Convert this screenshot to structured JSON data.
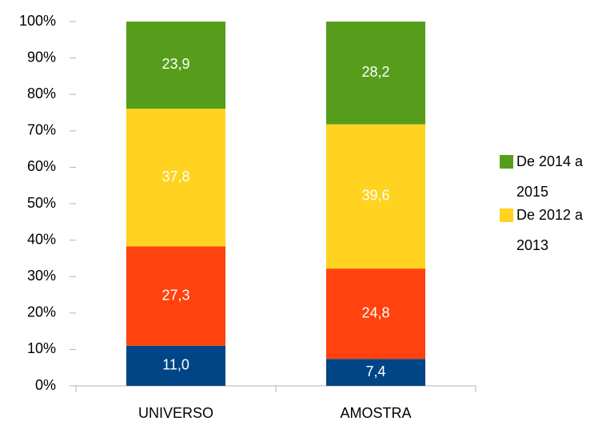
{
  "chart_data": {
    "type": "stacked_bar_percent",
    "categories": [
      "UNIVERSO",
      "AMOSTRA"
    ],
    "series": [
      {
        "color": "#004586",
        "values": [
          11.0,
          7.4
        ],
        "value_labels": [
          "11,0",
          "7,4"
        ]
      },
      {
        "color": "#ff420e",
        "values": [
          27.3,
          24.8
        ],
        "value_labels": [
          "27,3",
          "24,8"
        ]
      },
      {
        "name": "De 2012 a 2013",
        "color": "#ffd320",
        "values": [
          37.8,
          39.6
        ],
        "value_labels": [
          "37,8",
          "39,6"
        ]
      },
      {
        "name": "De 2014 a 2015",
        "color": "#579d1c",
        "values": [
          23.9,
          28.2
        ],
        "value_labels": [
          "23,9",
          "28,2"
        ]
      }
    ],
    "ylim": [
      0,
      100
    ],
    "yticks": [
      {
        "value": 0,
        "label": "0%"
      },
      {
        "value": 10,
        "label": "10%"
      },
      {
        "value": 20,
        "label": "20%"
      },
      {
        "value": 30,
        "label": "30%"
      },
      {
        "value": 40,
        "label": "40%"
      },
      {
        "value": 50,
        "label": "50%"
      },
      {
        "value": 60,
        "label": "60%"
      },
      {
        "value": 70,
        "label": "70%"
      },
      {
        "value": 80,
        "label": "80%"
      },
      {
        "value": 90,
        "label": "90%"
      },
      {
        "value": 100,
        "label": "100%"
      }
    ],
    "legend": "right"
  }
}
